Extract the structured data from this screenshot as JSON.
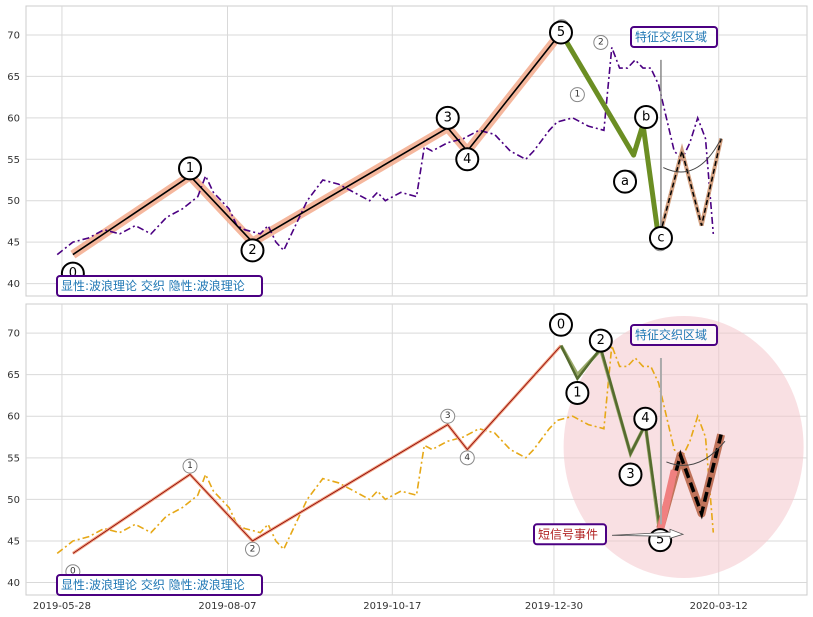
{
  "chart_data": [
    {
      "type": "line",
      "panel": "top",
      "ylim": [
        38.5,
        73.5
      ],
      "yticks": [
        40,
        45,
        50,
        55,
        60,
        65,
        70
      ],
      "xlim": [
        0,
        100
      ],
      "annotation": "显性:波浪理论 交织 隐性:波浪理论",
      "region_label": "特征交织区域",
      "price_dashdot": {
        "color": "#4b0082",
        "values": [
          [
            4,
            43.5
          ],
          [
            6,
            45
          ],
          [
            8,
            45.5
          ],
          [
            10,
            46.5
          ],
          [
            12,
            46
          ],
          [
            14,
            47
          ],
          [
            16,
            46
          ],
          [
            18,
            48
          ],
          [
            20,
            49
          ],
          [
            22,
            50.5
          ],
          [
            23,
            53
          ],
          [
            24,
            51
          ],
          [
            25,
            50
          ],
          [
            26,
            49
          ],
          [
            27,
            47
          ],
          [
            28,
            46.5
          ],
          [
            30,
            46
          ],
          [
            31,
            47
          ],
          [
            32,
            45
          ],
          [
            33,
            44
          ],
          [
            34,
            46
          ],
          [
            36,
            50
          ],
          [
            38,
            52.5
          ],
          [
            40,
            52
          ],
          [
            42,
            51
          ],
          [
            44,
            50
          ],
          [
            45,
            51
          ],
          [
            46,
            50
          ],
          [
            48,
            51
          ],
          [
            50,
            50.5
          ],
          [
            51,
            56.5
          ],
          [
            52,
            56
          ],
          [
            54,
            57
          ],
          [
            56,
            57.5
          ],
          [
            58,
            58.5
          ],
          [
            60,
            58
          ],
          [
            62,
            56
          ],
          [
            64,
            55
          ],
          [
            65,
            56
          ],
          [
            67,
            58.5
          ],
          [
            68,
            59.5
          ],
          [
            70,
            60
          ],
          [
            72,
            59
          ],
          [
            74,
            58.5
          ],
          [
            75,
            68.5
          ],
          [
            76,
            66
          ],
          [
            77,
            66
          ],
          [
            78,
            67
          ],
          [
            79,
            66
          ],
          [
            80,
            66
          ],
          [
            81,
            64
          ],
          [
            82,
            60
          ],
          [
            83,
            56
          ],
          [
            84,
            55
          ],
          [
            85,
            57
          ],
          [
            86,
            60
          ],
          [
            87,
            57.5
          ],
          [
            88,
            46
          ]
        ]
      },
      "wave_line": {
        "color": "#000000",
        "values": [
          [
            6,
            43.5
          ],
          [
            21,
            53
          ],
          [
            29,
            45
          ],
          [
            54,
            58.8
          ],
          [
            56.5,
            56
          ],
          [
            68.5,
            70.3
          ]
        ]
      },
      "wave_labels": [
        {
          "label": "0",
          "x": 6,
          "y": 41.2
        },
        {
          "label": "1",
          "x": 21,
          "y": 53.9
        },
        {
          "label": "2",
          "x": 29,
          "y": 44
        },
        {
          "label": "3",
          "x": 54,
          "y": 60
        },
        {
          "label": "4",
          "x": 56.5,
          "y": 55
        },
        {
          "label": "5",
          "x": 68.5,
          "y": 70.3
        },
        {
          "label": "a",
          "x": 76.7,
          "y": 52.3
        },
        {
          "label": "b",
          "x": 79.4,
          "y": 60.1
        },
        {
          "label": "c",
          "x": 81.3,
          "y": 45.5
        }
      ],
      "small_labels": [
        {
          "label": "1",
          "x": 70.6,
          "y": 62.8
        },
        {
          "label": "2",
          "x": 73.6,
          "y": 69.1
        },
        {
          "label": "3",
          "x": 77.2,
          "y": 52.8
        },
        {
          "label": "4",
          "x": 81.2,
          "y": 44.8
        },
        {
          "label": "0",
          "x": 68.6,
          "y": 71
        }
      ],
      "correction_line": {
        "color": "#6b8e23",
        "values": [
          [
            68.5,
            70.3
          ],
          [
            77.8,
            55.5
          ],
          [
            79,
            59.2
          ],
          [
            81,
            45.5
          ]
        ]
      },
      "projection": {
        "color": "#d2a080",
        "values": [
          [
            81.2,
            46
          ],
          [
            84,
            56
          ],
          [
            86.5,
            47
          ],
          [
            89,
            57.5
          ]
        ]
      }
    },
    {
      "type": "line",
      "panel": "bottom",
      "ylim": [
        38.5,
        73.5
      ],
      "yticks": [
        40,
        45,
        50,
        55,
        60,
        65,
        70
      ],
      "xlim": [
        0,
        100
      ],
      "x_tick_labels": [
        "2019-05-28",
        "2019-08-07",
        "2019-10-17",
        "2019-12-30",
        "2020-03-12"
      ],
      "x_ticks_at": [
        4.6,
        25.8,
        46.9,
        67.6,
        88.7
      ],
      "annotation": "显性:波浪理论 交织 隐性:波浪理论",
      "region_label": "特征交织区域",
      "event_label": "短信号事件",
      "price_dashdot": {
        "color": "#e6a817",
        "values": [
          [
            4,
            43.5
          ],
          [
            6,
            45
          ],
          [
            8,
            45.5
          ],
          [
            10,
            46.5
          ],
          [
            12,
            46
          ],
          [
            14,
            47
          ],
          [
            16,
            46
          ],
          [
            18,
            48
          ],
          [
            20,
            49
          ],
          [
            22,
            50.5
          ],
          [
            23,
            53
          ],
          [
            24,
            51
          ],
          [
            25,
            50
          ],
          [
            26,
            49
          ],
          [
            27,
            47
          ],
          [
            28,
            46.5
          ],
          [
            30,
            46
          ],
          [
            31,
            47
          ],
          [
            32,
            45
          ],
          [
            33,
            44
          ],
          [
            34,
            46
          ],
          [
            36,
            50
          ],
          [
            38,
            52.5
          ],
          [
            40,
            52
          ],
          [
            42,
            51
          ],
          [
            44,
            50
          ],
          [
            45,
            51
          ],
          [
            46,
            50
          ],
          [
            48,
            51
          ],
          [
            50,
            50.5
          ],
          [
            51,
            56.5
          ],
          [
            52,
            56
          ],
          [
            54,
            57
          ],
          [
            56,
            57.5
          ],
          [
            58,
            58.5
          ],
          [
            60,
            58
          ],
          [
            62,
            56
          ],
          [
            64,
            55
          ],
          [
            65,
            56
          ],
          [
            67,
            58.5
          ],
          [
            68,
            59.5
          ],
          [
            70,
            60
          ],
          [
            72,
            59
          ],
          [
            74,
            58.5
          ],
          [
            75,
            68.5
          ],
          [
            76,
            66
          ],
          [
            77,
            66
          ],
          [
            78,
            67
          ],
          [
            79,
            66
          ],
          [
            80,
            66
          ],
          [
            81,
            64
          ],
          [
            82,
            60
          ],
          [
            83,
            56
          ],
          [
            84,
            55
          ],
          [
            85,
            57
          ],
          [
            86,
            60
          ],
          [
            87,
            57.5
          ],
          [
            88,
            46
          ]
        ]
      },
      "wave_line": {
        "color": "#8b0000",
        "values": [
          [
            6,
            43.5
          ],
          [
            21,
            53
          ],
          [
            29,
            45
          ],
          [
            54,
            59
          ],
          [
            56.5,
            56
          ],
          [
            68.5,
            68.5
          ]
        ]
      },
      "small_labels": [
        {
          "label": "0",
          "x": 6,
          "y": 41.3
        },
        {
          "label": "1",
          "x": 21,
          "y": 54
        },
        {
          "label": "2",
          "x": 29,
          "y": 44
        },
        {
          "label": "3",
          "x": 54,
          "y": 60
        },
        {
          "label": "4",
          "x": 56.5,
          "y": 55
        }
      ],
      "wave_labels": [
        {
          "label": "0",
          "x": 68.5,
          "y": 71
        },
        {
          "label": "1",
          "x": 70.6,
          "y": 62.8
        },
        {
          "label": "2",
          "x": 73.6,
          "y": 69.1
        },
        {
          "label": "3",
          "x": 77.4,
          "y": 53
        },
        {
          "label": "4",
          "x": 79.3,
          "y": 59.7
        },
        {
          "label": "5",
          "x": 81.2,
          "y": 45.1
        }
      ],
      "inner_wave": {
        "color": "#556b2f",
        "values": [
          [
            68.5,
            68.5
          ],
          [
            70.6,
            64.5
          ],
          [
            73.6,
            68.2
          ],
          [
            77.4,
            55.5
          ],
          [
            79.3,
            59
          ],
          [
            81.2,
            46.2
          ]
        ]
      },
      "inner_light": {
        "color": "#9aaa6a",
        "values": [
          [
            68.5,
            68.5
          ],
          [
            70.6,
            65
          ],
          [
            73.6,
            68
          ],
          [
            77.4,
            55.5
          ],
          [
            79.3,
            59
          ],
          [
            81,
            47
          ]
        ]
      },
      "projection": {
        "color": "#c0735a",
        "values": [
          [
            81.2,
            46.5
          ],
          [
            83.8,
            55.3
          ],
          [
            86.5,
            48.3
          ],
          [
            89,
            57.8
          ]
        ]
      },
      "red_segment": {
        "color": "#f08080",
        "values": [
          [
            81.2,
            46.2
          ],
          [
            83,
            53.5
          ]
        ]
      }
    }
  ]
}
